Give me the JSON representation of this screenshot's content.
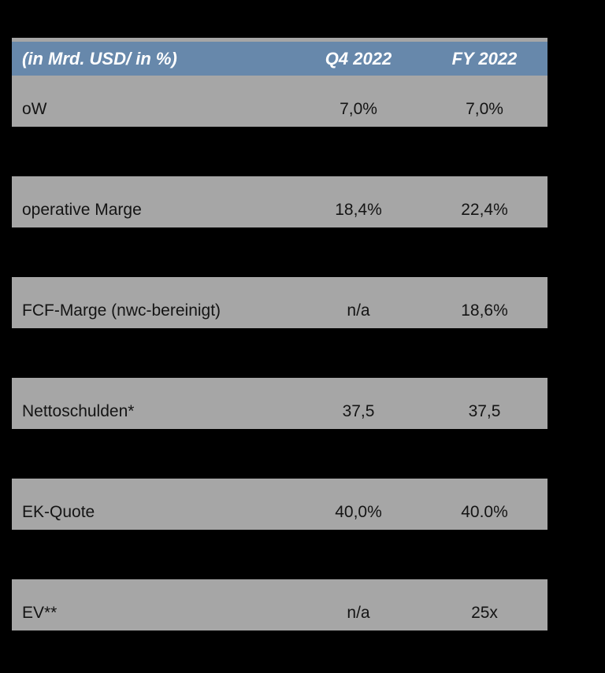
{
  "chart_data": {
    "type": "table",
    "columns": [
      "(in Mrd. USD/ in %)",
      "Q4 2022",
      "FY 2022"
    ],
    "rows": [
      [
        "oW",
        "7,0%",
        "7,0%"
      ],
      [
        "operative Marge",
        "18,4%",
        "22,4%"
      ],
      [
        "FCF-Marge (nwc-bereinigt)",
        "n/a",
        "18,6%"
      ],
      [
        "Nettoschulden*",
        "37,5",
        "37,5"
      ],
      [
        "EK-Quote",
        "40,0%",
        "40.0%"
      ],
      [
        "EV**",
        "n/a",
        "25x"
      ]
    ],
    "layout": {
      "background": "#000000",
      "header_bg": "#6788ab",
      "header_text_color": "#ffffff",
      "row_bg": "#a6a6a6",
      "row_text_color": "#141414",
      "rows_separated_by_black_gaps": true
    }
  }
}
